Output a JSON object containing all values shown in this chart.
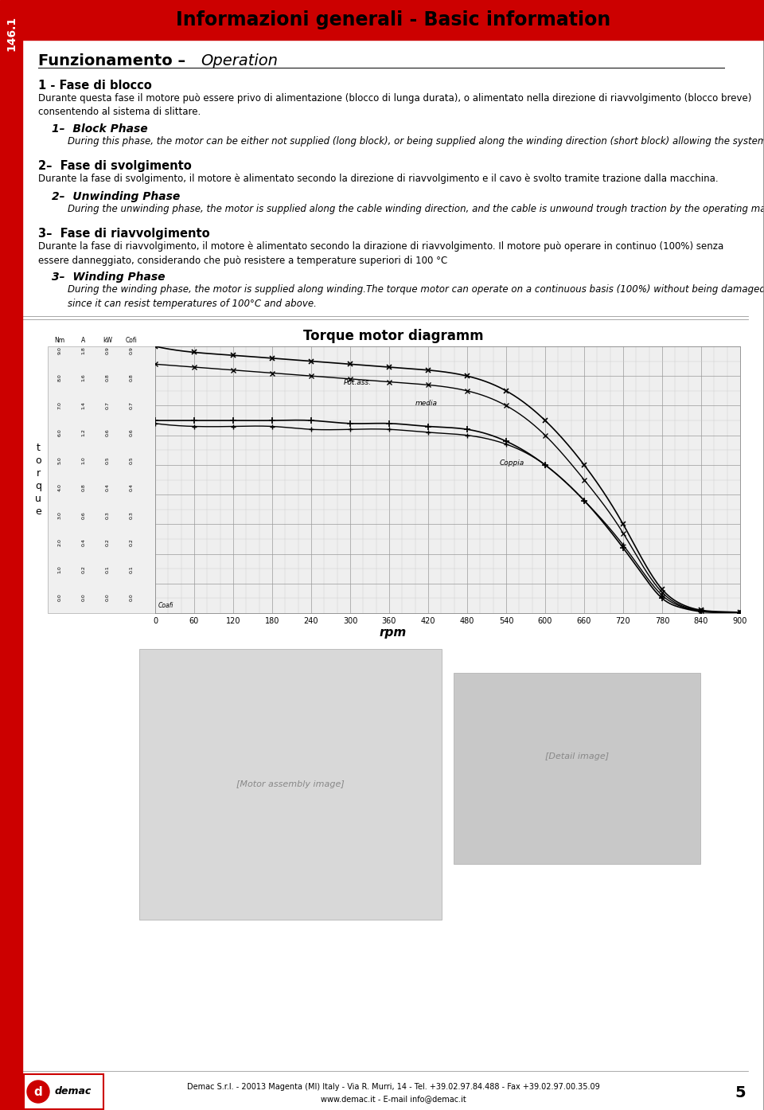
{
  "page_bg": "#ffffff",
  "header_bg": "#cc0000",
  "header_text": "Informazioni generali - Basic information",
  "sidebar_text": "146.1",
  "sidebar_bg": "#cc0000",
  "sections": [
    {
      "heading_it": "1 - Fase di blocco",
      "body_it": "Durante questa fase il motore può essere privo di alimentazione (blocco di lunga durata), o alimentato nella direzione di riavvolgimento (blocco breve)\nconsentendo al sistema di slittare.",
      "heading_en": "1–  Block Phase",
      "body_en": "During this phase, the motor can be either not supplied (long block), or being supplied along the winding direction (short block) allowing the system to slip."
    },
    {
      "heading_it": "2–  Fase di svolgimento",
      "body_it": "Durante la fase di svolgimento, il motore è alimentato secondo la direzione di riavvolgimento e il cavo è svolto tramite trazione dalla macchina.",
      "heading_en": "2–  Unwinding Phase",
      "body_en": "During the unwinding phase, the motor is supplied along the cable winding direction, and the cable is unwound trough traction by the operating machine."
    },
    {
      "heading_it": "3–  Fase di riavvolgimento",
      "body_it": "Durante la fase di riavvolgimento, il motore è alimentato secondo la dirazione di riavvolgimento. Il motore può operare in continuo (100%) senza\nessere danneggiato, considerando che può resistere a temperature superiori di 100 °C",
      "heading_en": "3–  Winding Phase",
      "body_en": "During the winding phase, the motor is supplied along winding.The torque motor can operate on a continuous basis (100%) without being damaged,\nsince it can resist temperatures of 100°C and above."
    }
  ],
  "diagram_title": "Torque motor diagramm",
  "footer_company": "Demac S.r.l. - 20013 Magenta (MI) Italy - Via R. Murri, 14 - Tel. +39.02.97.84.488 - Fax +39.02.97.00.35.09",
  "footer_web": "www.demac.it - E-mail info@demac.it",
  "page_num": "5"
}
